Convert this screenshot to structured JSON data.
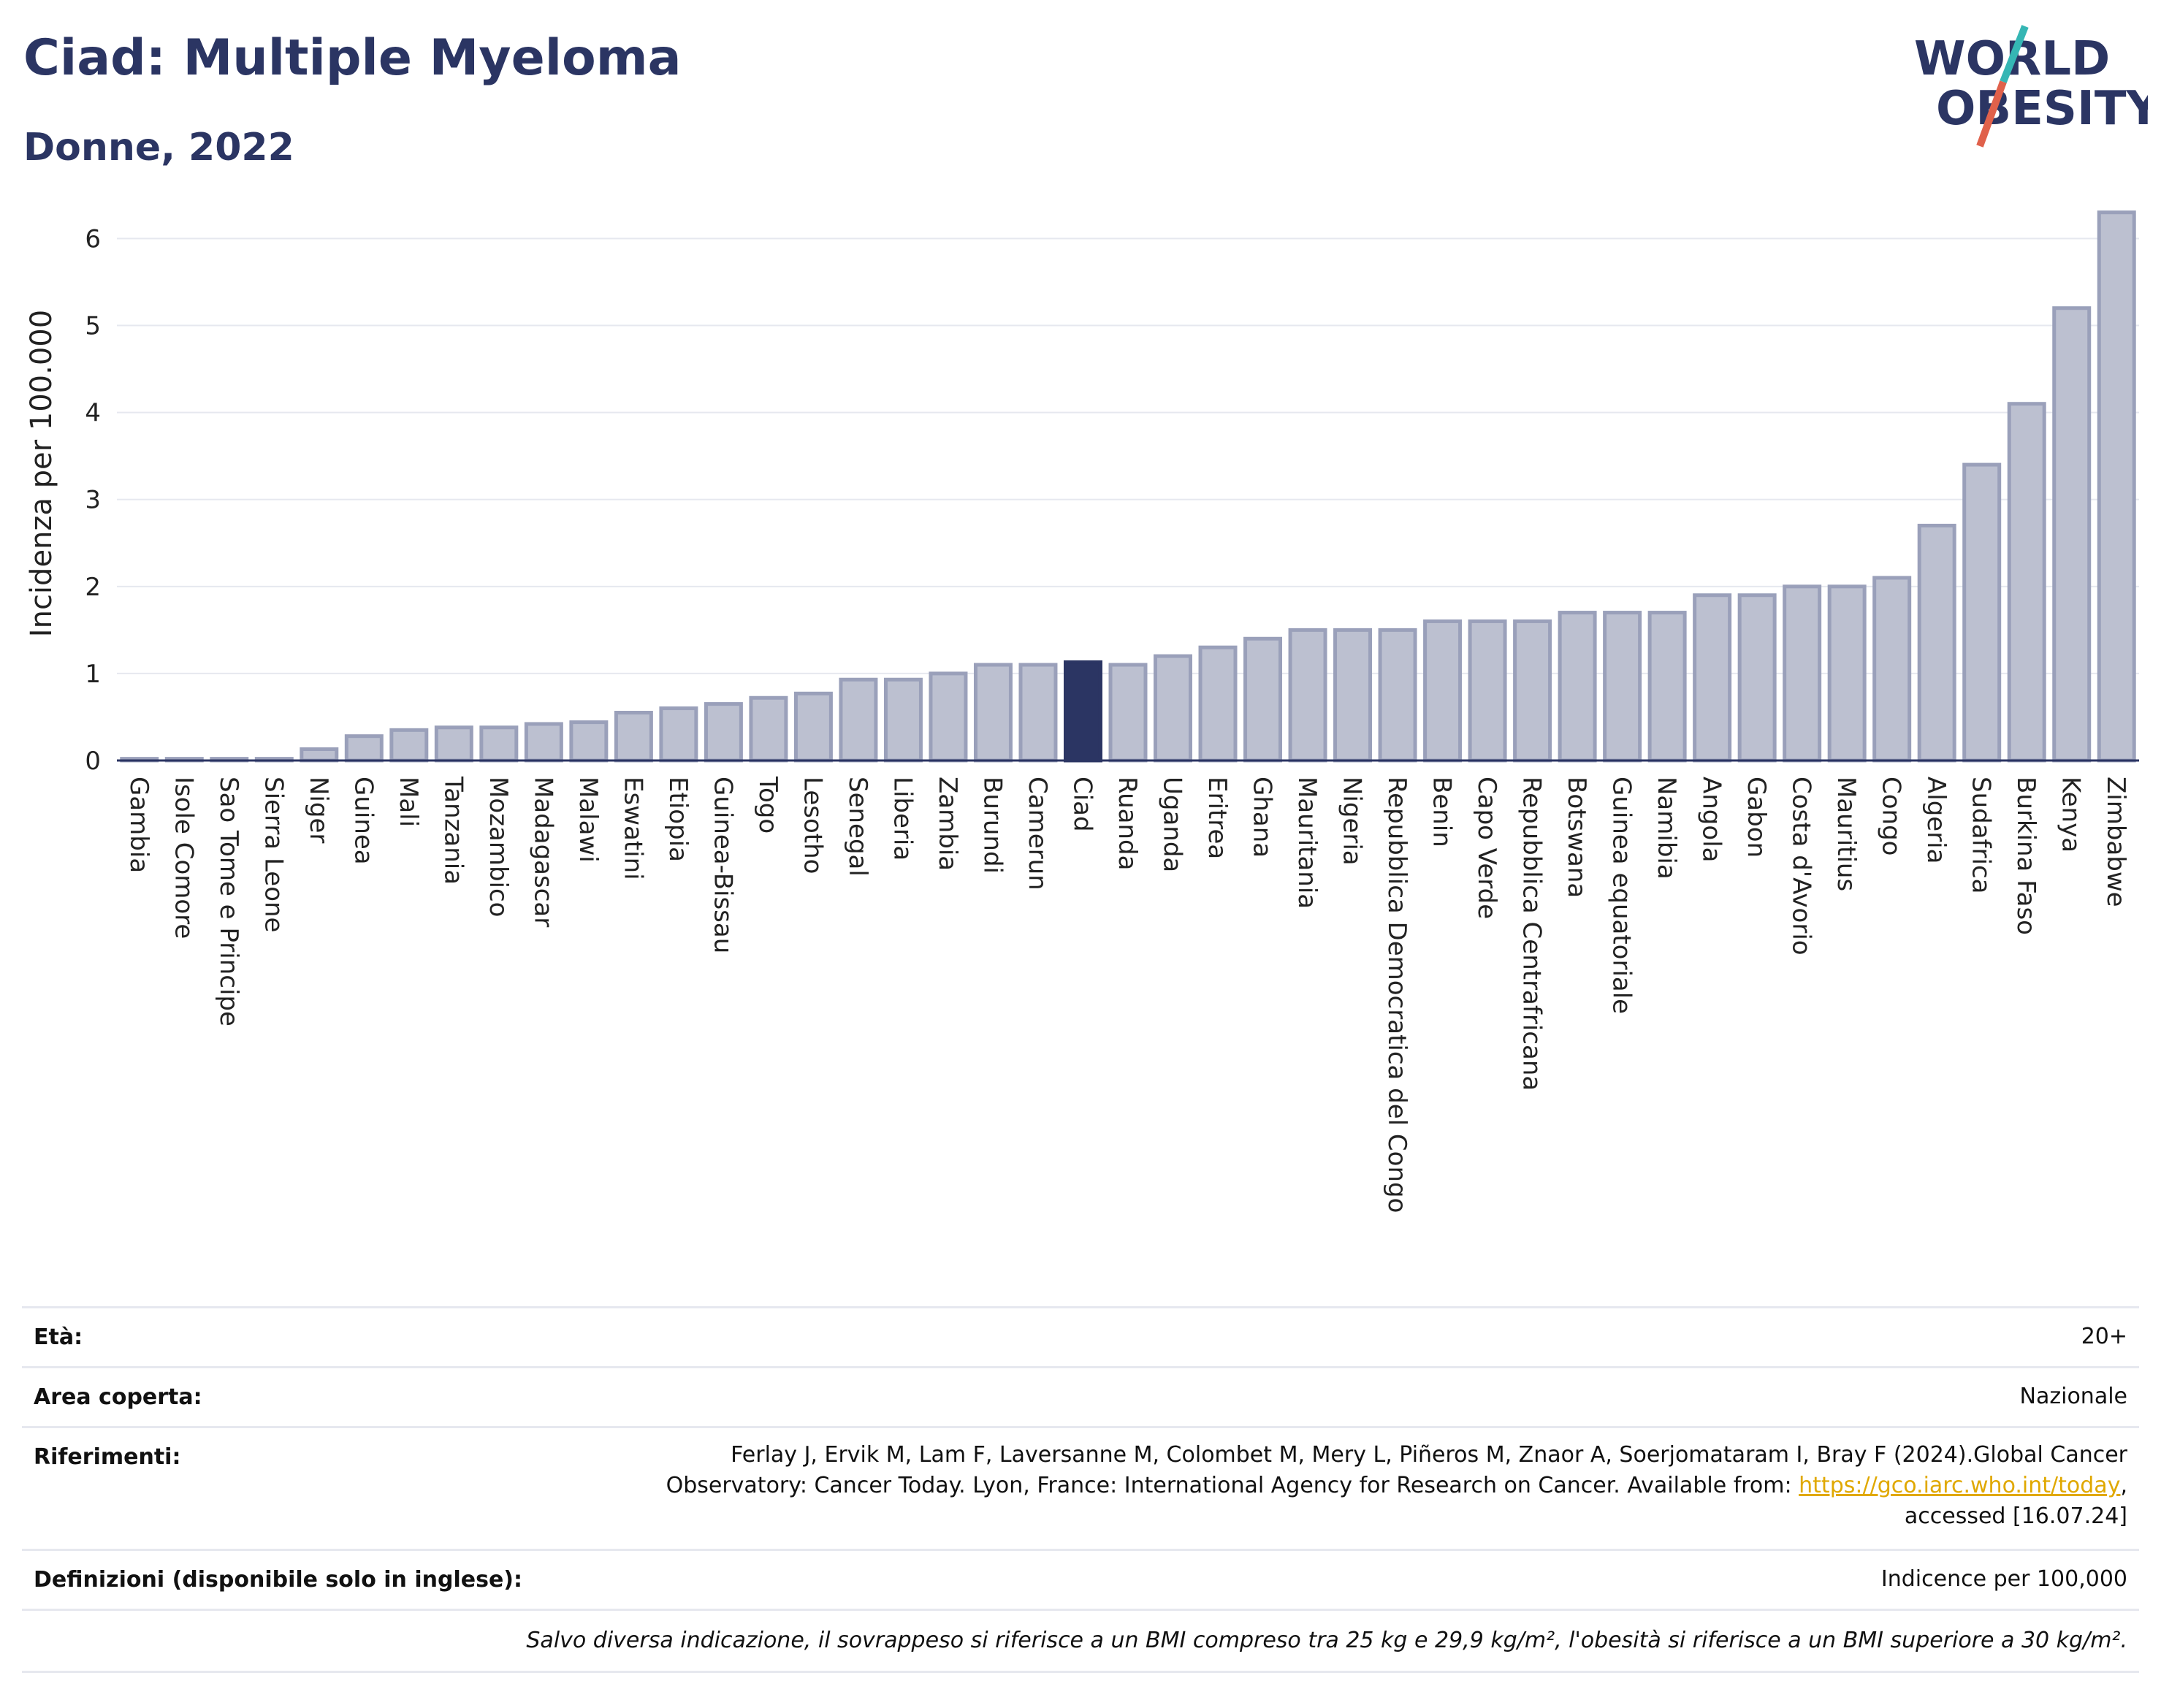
{
  "header": {
    "title": "Ciad: Multiple Myeloma",
    "subtitle": "Donne, 2022"
  },
  "logo": {
    "line1": "WORLD",
    "line2": "OBESITY",
    "accent_teal": "#35b6b4",
    "accent_red": "#e0614b"
  },
  "colors": {
    "bar": "#bcc0d0",
    "bar_border": "#9aa0ba",
    "highlight": "#2b3563",
    "grid": "#e6e8ef",
    "axis": "#2b3563"
  },
  "chart_data": {
    "type": "bar",
    "ylabel": "Incidenza per 100.000",
    "ylim": [
      0,
      6.6
    ],
    "yticks": [
      0,
      1,
      2,
      3,
      4,
      5,
      6
    ],
    "highlight": "Ciad",
    "categories": [
      "Gambia",
      "Isole Comore",
      "Sao Tome e Principe",
      "Sierra Leone",
      "Niger",
      "Guinea",
      "Mali",
      "Tanzania",
      "Mozambico",
      "Madagascar",
      "Malawi",
      "Eswatini",
      "Etiopia",
      "Guinea-Bissau",
      "Togo",
      "Lesotho",
      "Senegal",
      "Liberia",
      "Zambia",
      "Burundi",
      "Camerun",
      "Ciad",
      "Ruanda",
      "Uganda",
      "Eritrea",
      "Ghana",
      "Mauritania",
      "Nigeria",
      "Repubblica Democratica del Congo",
      "Benin",
      "Capo Verde",
      "Repubblica Centrafricana",
      "Botswana",
      "Guinea equatoriale",
      "Namibia",
      "Angola",
      "Gabon",
      "Costa d'Avorio",
      "Mauritius",
      "Congo",
      "Algeria",
      "Sudafrica",
      "Burkina Faso",
      "Kenya",
      "Zimbabwe"
    ],
    "values": [
      0.02,
      0.02,
      0.02,
      0.02,
      0.13,
      0.28,
      0.35,
      0.38,
      0.38,
      0.42,
      0.44,
      0.55,
      0.6,
      0.65,
      0.72,
      0.77,
      0.93,
      0.93,
      1.0,
      1.1,
      1.1,
      1.13,
      1.1,
      1.2,
      1.3,
      1.4,
      1.5,
      1.5,
      1.5,
      1.6,
      1.6,
      1.6,
      1.7,
      1.7,
      1.7,
      1.9,
      1.9,
      2.0,
      2.0,
      2.1,
      2.7,
      3.4,
      4.1,
      5.2,
      6.3
    ]
  },
  "meta": {
    "age_label": "Età:",
    "age_value": "20+",
    "area_label": "Area coperta:",
    "area_value": "Nazionale",
    "ref_label": "Riferimenti:",
    "ref_line1": "Ferlay J, Ervik M, Lam F, Laversanne M, Colombet M, Mery L, Piñeros M, Znaor A, Soerjomataram I, Bray F (2024).Global Cancer",
    "ref_line2_pre": "Observatory: Cancer Today. Lyon, France: International Agency for Research on Cancer. Available from: ",
    "ref_link": "https://gco.iarc.who.int/today",
    "ref_line2_post": ",",
    "ref_line3": "accessed [16.07.24]",
    "def_label": "Definizioni (disponibile solo in inglese):",
    "def_value": "Indicence per 100,000",
    "note": "Salvo diversa indicazione, il sovrappeso si riferisce a un BMI compreso tra 25 kg e 29,9 kg/m², l'obesità si riferisce a un BMI superiore a 30 kg/m²."
  }
}
